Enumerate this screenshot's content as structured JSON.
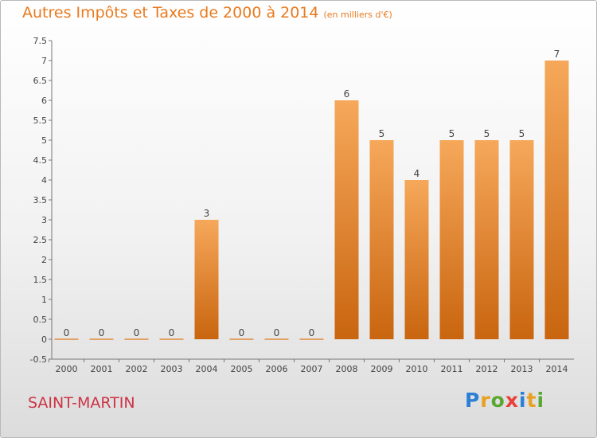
{
  "header": {
    "title": "Autres Impôts et Taxes de 2000 à 2014",
    "unit": "(en milliers d'€)"
  },
  "footer": {
    "commune": "SAINT-MARTIN",
    "logo_letters": [
      "P",
      "r",
      "o",
      "x",
      "i",
      "t",
      "i"
    ],
    "logo_colors": [
      "#2b7fd4",
      "#e8a020",
      "#5aa832",
      "#e8403a",
      "#2b7fd4",
      "#e8a020",
      "#5aa832"
    ]
  },
  "colors": {
    "title": "#e87a1e",
    "bar_top": "#f6a85a",
    "bar_bottom": "#c9650f",
    "commune": "#cc3344"
  },
  "chart_data": {
    "type": "bar",
    "categories": [
      "2000",
      "2001",
      "2002",
      "2003",
      "2004",
      "2005",
      "2006",
      "2007",
      "2008",
      "2009",
      "2010",
      "2011",
      "2012",
      "2013",
      "2014"
    ],
    "values": [
      0,
      0,
      0,
      0,
      3,
      0,
      0,
      0,
      6,
      5,
      4,
      5,
      5,
      5,
      7
    ],
    "value_labels": [
      "0",
      "0",
      "0",
      "0",
      "3",
      "0",
      "0",
      "0",
      "6",
      "5",
      "4",
      "5",
      "5",
      "5",
      "7"
    ],
    "y_ticks": [
      "-0.5",
      "0",
      "0.5",
      "1",
      "1.5",
      "2",
      "2.5",
      "3",
      "3.5",
      "4",
      "4.5",
      "5",
      "5.5",
      "6",
      "6.5",
      "7",
      "7.5"
    ],
    "ylim": [
      -0.5,
      7.5
    ],
    "grid": false,
    "legend": "none"
  }
}
